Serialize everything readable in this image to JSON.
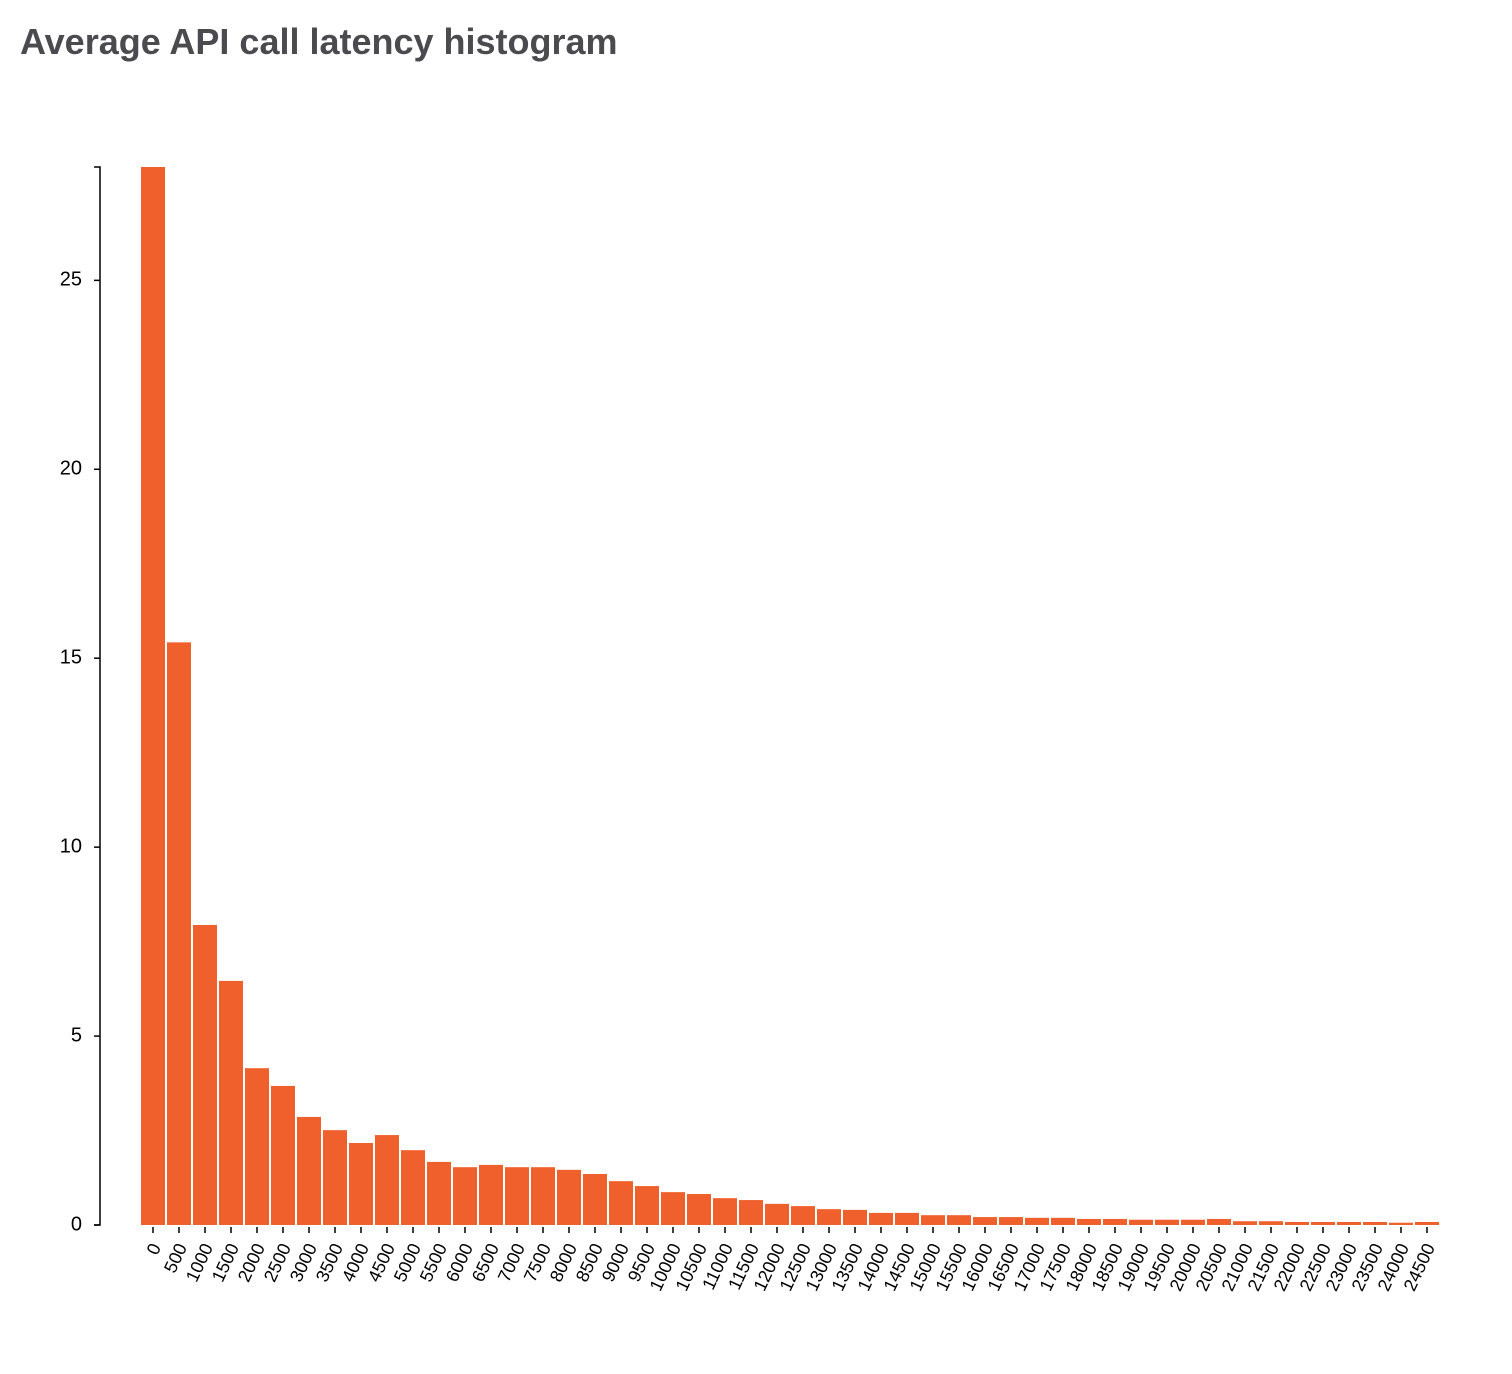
{
  "chart_data": {
    "type": "bar",
    "title": "Average API call latency histogram",
    "categories": [
      "0",
      "500",
      "1000",
      "1500",
      "2000",
      "2500",
      "3000",
      "3500",
      "4000",
      "4500",
      "5000",
      "5500",
      "6000",
      "6500",
      "7000",
      "7500",
      "8000",
      "8500",
      "9000",
      "9500",
      "10000",
      "10500",
      "11000",
      "11500",
      "12000",
      "12500",
      "13000",
      "13500",
      "14000",
      "14500",
      "15000",
      "15500",
      "16000",
      "16500",
      "17000",
      "17500",
      "18000",
      "18500",
      "19000",
      "19500",
      "20000",
      "20500",
      "21000",
      "21500",
      "22000",
      "22500",
      "23000",
      "23500",
      "24000",
      "24500"
    ],
    "values": [
      28,
      15.42,
      7.94,
      6.46,
      4.15,
      3.68,
      2.86,
      2.51,
      2.17,
      2.38,
      1.98,
      1.67,
      1.53,
      1.59,
      1.53,
      1.53,
      1.46,
      1.35,
      1.16,
      1.03,
      0.87,
      0.82,
      0.71,
      0.66,
      0.56,
      0.5,
      0.42,
      0.4,
      0.32,
      0.32,
      0.26,
      0.26,
      0.21,
      0.21,
      0.19,
      0.19,
      0.16,
      0.16,
      0.14,
      0.14,
      0.14,
      0.16,
      0.1,
      0.1,
      0.08,
      0.08,
      0.08,
      0.08,
      0.06,
      0.08
    ],
    "color": "#f0602c",
    "ylim": [
      0,
      28
    ],
    "yticks": [
      0,
      5,
      10,
      15,
      20,
      25
    ],
    "grid": false
  }
}
